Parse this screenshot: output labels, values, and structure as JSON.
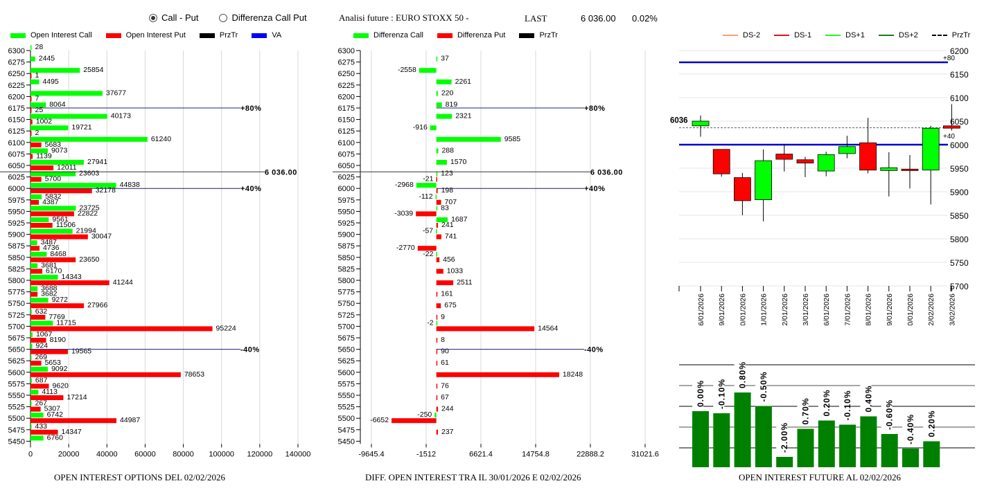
{
  "controls": {
    "radio_options": [
      {
        "label": "Call - Put",
        "selected": true
      },
      {
        "label": "Differenza Call Put",
        "selected": false
      }
    ]
  },
  "header": {
    "title": "Analisi future : EURO STOXX 50 -",
    "last_label": "LAST",
    "last_price": "6 036.00",
    "change_pct": "0.02%"
  },
  "colors": {
    "call": "#00ff00",
    "put": "#ff0000",
    "przTr": "#000000",
    "va": "#0000ff",
    "ds_minus2": "#f4a07a",
    "ds_minus1": "#e0141e",
    "ds_plus1": "#33ee33",
    "ds_plus2": "#1a7a1a",
    "future_bar": "#008000",
    "level_line": "#1c1c7a"
  },
  "chart_data": [
    {
      "id": "oi-options",
      "type": "bar",
      "orientation": "horizontal",
      "title": "OPEN INTEREST OPTIONS DEL 02/02/2026",
      "legend": [
        "Open Interest Call",
        "Open Interest Put",
        "PrzTr",
        "VA"
      ],
      "legend_position": "top",
      "categories": [
        "6300",
        "6275",
        "6250",
        "6225",
        "6200",
        "6175",
        "6150",
        "6125",
        "6100",
        "6075",
        "6050",
        "6025",
        "6000",
        "5975",
        "5950",
        "5925",
        "5900",
        "5875",
        "5850",
        "5825",
        "5800",
        "5775",
        "5750",
        "5725",
        "5700",
        "5675",
        "5650",
        "5625",
        "5600",
        "5575",
        "5550",
        "5525",
        "5500",
        "5475",
        "5450"
      ],
      "series": [
        {
          "name": "Open Interest Call",
          "values": [
            28,
            2445,
            25854,
            4495,
            37677,
            8064,
            40173,
            19721,
            61240,
            9073,
            27941,
            23603,
            44838,
            5832,
            23725,
            9561,
            21994,
            3487,
            8468,
            3681,
            14343,
            3688,
            9272,
            632,
            11715,
            1067,
            924,
            269,
            9092,
            687,
            4113,
            267,
            6742,
            433,
            6760
          ]
        },
        {
          "name": "Open Interest Put",
          "values": [
            null,
            null,
            1,
            null,
            7,
            25,
            1002,
            2,
            5683,
            1139,
            12011,
            5700,
            32178,
            4387,
            22822,
            11506,
            30047,
            4736,
            23650,
            6170,
            41244,
            3682,
            27966,
            7769,
            95224,
            8190,
            19565,
            5653,
            78653,
            9620,
            17214,
            5307,
            44987,
            14347,
            null
          ]
        }
      ],
      "xlim": [
        0,
        140000
      ],
      "xticks": [
        "0",
        "20000",
        "40000",
        "60000",
        "80000",
        "100000",
        "120000",
        "140000"
      ],
      "grid": true,
      "annotations": [
        {
          "label": "+80%",
          "strike": 6175
        },
        {
          "label": "6 036.00",
          "strike": 6036
        },
        {
          "label": "+40%",
          "strike": 6000
        },
        {
          "label": "-40%",
          "strike": 5650
        }
      ]
    },
    {
      "id": "oi-diff",
      "type": "bar",
      "orientation": "horizontal",
      "title": "DIFF. OPEN INTEREST TRA IL 30/01/2026 E 02/02/2026",
      "legend": [
        "Differenza Call",
        "Differenza Put",
        "PrzTr"
      ],
      "legend_position": "top",
      "categories": [
        "6300",
        "6275",
        "6250",
        "6225",
        "6200",
        "6175",
        "6150",
        "6125",
        "6100",
        "6075",
        "6050",
        "6025",
        "6000",
        "5975",
        "5950",
        "5925",
        "5900",
        "5875",
        "5850",
        "5825",
        "5800",
        "5775",
        "5750",
        "5725",
        "5700",
        "5675",
        "5650",
        "5625",
        "5600",
        "5575",
        "5550",
        "5525",
        "5500",
        "5475",
        "5450"
      ],
      "series": [
        {
          "name": "Differenza Call",
          "values": [
            null,
            37,
            -2558,
            2261,
            220,
            819,
            2321,
            -916,
            9585,
            288,
            1570,
            123,
            -2968,
            -112,
            83,
            1687,
            -57,
            null,
            -22,
            null,
            null,
            null,
            null,
            null,
            -2,
            null,
            null,
            null,
            null,
            null,
            null,
            null,
            -250,
            null,
            null
          ]
        },
        {
          "name": "Differenza Put",
          "values": [
            null,
            null,
            null,
            null,
            null,
            null,
            null,
            null,
            null,
            null,
            null,
            -21,
            198,
            707,
            -3039,
            241,
            741,
            -2770,
            456,
            1033,
            2511,
            161,
            675,
            9,
            14564,
            8,
            90,
            61,
            18248,
            76,
            67,
            244,
            -6652,
            237,
            null
          ]
        }
      ],
      "xlim": [
        -9645.4,
        31021.6
      ],
      "xticks": [
        "-9645.4",
        "-1512",
        "6621.4",
        "14754.8",
        "22888.2",
        "31021.6"
      ],
      "grid": true,
      "annotations": [
        {
          "label": "+80%",
          "strike": 6175
        },
        {
          "label": "6 036.00",
          "strike": 6036
        },
        {
          "label": "+40%",
          "strike": 6000
        },
        {
          "label": "-40%",
          "strike": 5650
        }
      ]
    },
    {
      "id": "candles",
      "type": "candlestick",
      "legend": [
        "DS-2",
        "DS-1",
        "DS+1",
        "DS+2",
        "PrzTr"
      ],
      "legend_position": "top",
      "categories": [
        "16/01/2026",
        "19/01/2026",
        "20/01/2026",
        "21/01/2026",
        "22/01/2026",
        "23/01/2026",
        "26/01/2026",
        "27/01/2026",
        "28/01/2026",
        "29/01/2026",
        "30/01/2026",
        "02/02/2026",
        "03/02/2026"
      ],
      "candles": [
        {
          "open": 6040,
          "close": 6050,
          "high": 6062,
          "low": 6017
        },
        {
          "open": 5990,
          "close": 5938,
          "high": 5990,
          "low": 5932
        },
        {
          "open": 5930,
          "close": 5881,
          "high": 5940,
          "low": 5850
        },
        {
          "open": 5883,
          "close": 5966,
          "high": 5990,
          "low": 5837
        },
        {
          "open": 5980,
          "close": 5969,
          "high": 6000,
          "low": 5943
        },
        {
          "open": 5968,
          "close": 5961,
          "high": 5974,
          "low": 5931
        },
        {
          "open": 5944,
          "close": 5979,
          "high": 5985,
          "low": 5933
        },
        {
          "open": 5981,
          "close": 5996,
          "high": 6019,
          "low": 5971
        },
        {
          "open": 6004,
          "close": 5946,
          "high": 6057,
          "low": 5939
        },
        {
          "open": 5945,
          "close": 5951,
          "high": 5984,
          "low": 5890
        },
        {
          "open": 5948,
          "close": 5945,
          "high": 5978,
          "low": 5907
        },
        {
          "open": 5946,
          "close": 6035,
          "high": 6040,
          "low": 5873
        },
        {
          "open": 6040,
          "close": 6035,
          "high": 6086,
          "low": 6030
        }
      ],
      "ylim": [
        5700,
        6200
      ],
      "yticks": [
        "6200",
        "6150",
        "6100",
        "6050",
        "6000",
        "5950",
        "5900",
        "5850",
        "5800",
        "5750",
        "5700"
      ],
      "reference_lines": [
        {
          "label": "+80",
          "value": 6175,
          "style": "solid-blue"
        },
        {
          "label": "+40",
          "value": 6000,
          "style": "solid-blue"
        },
        {
          "label": "6036",
          "value": 6036,
          "style": "dashed-gray"
        }
      ],
      "grid": true
    },
    {
      "id": "oi-future",
      "type": "bar",
      "title": "OPEN INTEREST FUTURE AL 02/02/2026",
      "labels": [
        "0.00%",
        "-0.10%",
        "0.80%",
        "-0.50%",
        "-2.00%",
        "0.70%",
        "0.20%",
        "-0.10%",
        "0.40%",
        "-0.60%",
        "-0.40%",
        "0.20%"
      ],
      "relative_values": [
        0.54,
        0.52,
        0.72,
        0.59,
        0.1,
        0.37,
        0.45,
        0.41,
        0.49,
        0.32,
        0.18,
        0.25
      ],
      "grid": true
    }
  ]
}
